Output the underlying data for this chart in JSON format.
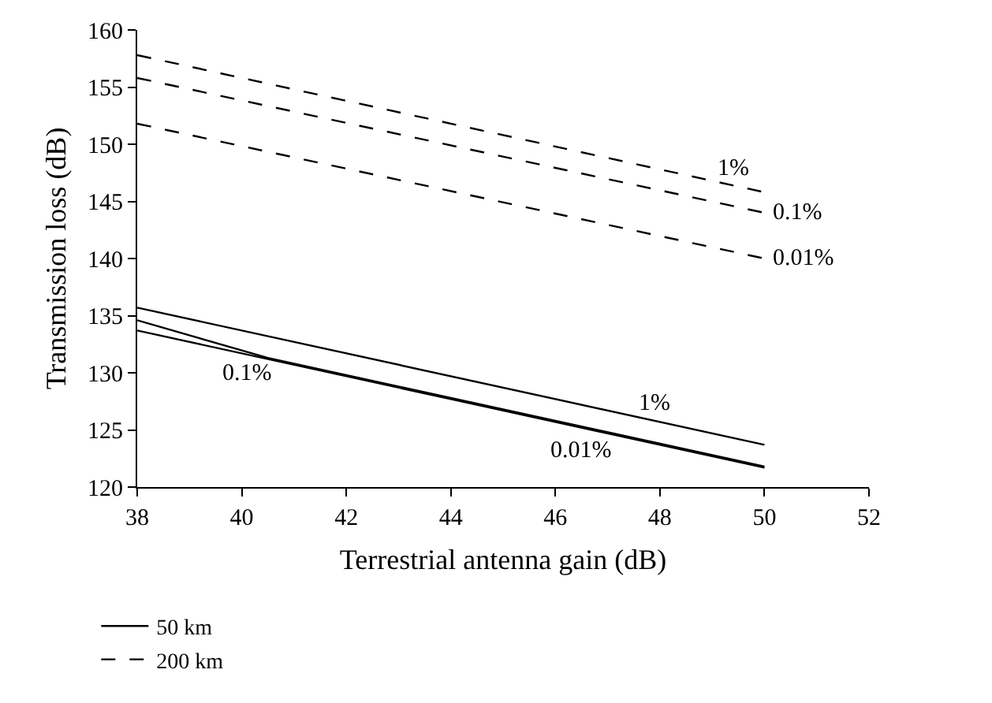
{
  "chart_data": {
    "type": "line",
    "xlabel": "Terrestrial antenna gain (dB)",
    "ylabel": "Transmission loss (dB)",
    "xlim": [
      38,
      52
    ],
    "xticks": [
      38,
      40,
      42,
      44,
      46,
      48,
      50,
      52
    ],
    "ylim": [
      120,
      160
    ],
    "yticks": [
      120,
      125,
      130,
      135,
      140,
      145,
      150,
      155,
      160
    ],
    "legend": "bottom",
    "marker": "none",
    "series": [
      {
        "name": "50 km",
        "color": "#000000",
        "line_style": "solid",
        "x": [
          38,
          50
        ],
        "values": [
          135.7,
          123.7
        ]
      },
      {
        "color": "#000000",
        "line_style": "solid",
        "x": [
          38,
          40.5,
          50
        ],
        "values": [
          134.6,
          131.3,
          121.8
        ]
      },
      {
        "color": "#000000",
        "line_style": "solid",
        "x": [
          38,
          50
        ],
        "values": [
          133.7,
          121.7
        ]
      },
      {
        "name": "200 km",
        "color": "#000000",
        "line_style": "dashed",
        "x": [
          38,
          50
        ],
        "values": [
          157.8,
          145.8
        ]
      },
      {
        "color": "#000000",
        "line_style": "dashed",
        "x": [
          38,
          50
        ],
        "values": [
          155.8,
          144.0
        ]
      },
      {
        "color": "#000000",
        "line_style": "dashed",
        "x": [
          38,
          50
        ],
        "values": [
          151.8,
          140.0
        ]
      }
    ],
    "annotations": [
      {
        "text": "1%",
        "x": 47.9,
        "y": 125.8
      },
      {
        "text": "0.1%",
        "x": 40.1,
        "y": 131.8
      },
      {
        "text": "0.01%",
        "x": 46.5,
        "y": 124.9
      },
      {
        "text": "1%",
        "x": 49.4,
        "y": 146.4
      },
      {
        "text": "0.1%",
        "x": 50,
        "y": 144.0
      },
      {
        "text": "0.01%",
        "x": 50,
        "y": 140.0
      }
    ]
  }
}
